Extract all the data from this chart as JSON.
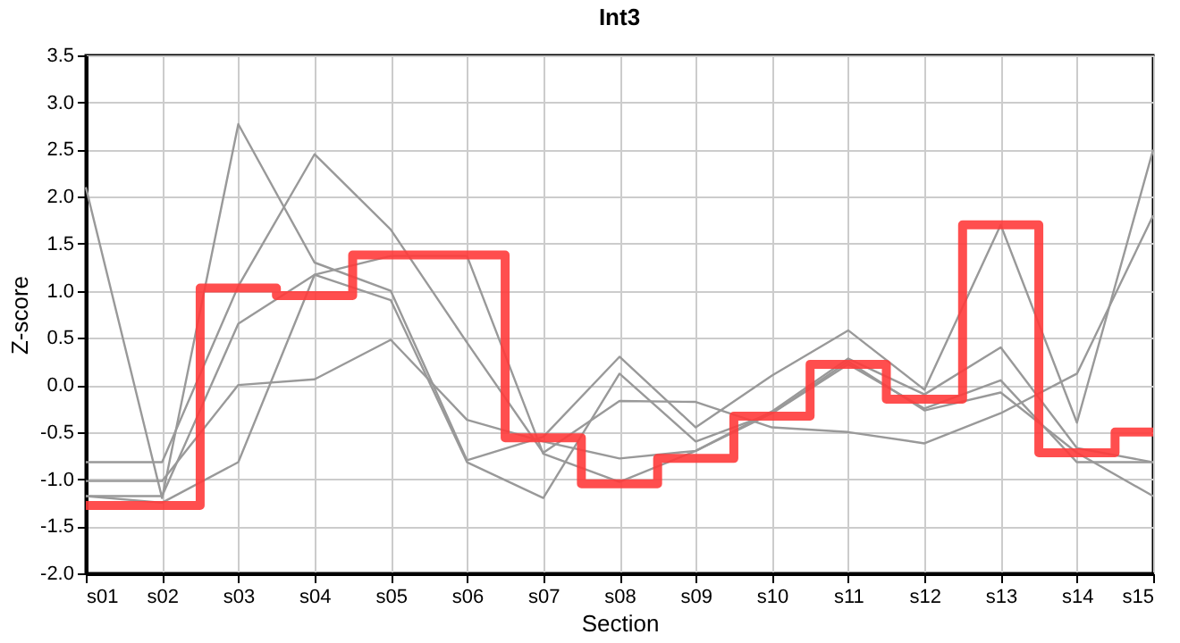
{
  "chart_data": {
    "type": "line",
    "title": "Int3",
    "xlabel": "Section",
    "ylabel": "Z-score",
    "categories": [
      "s01",
      "s02",
      "s03",
      "s04",
      "s05",
      "s06",
      "s07",
      "s08",
      "s09",
      "s10",
      "s11",
      "s12",
      "s13",
      "s14",
      "s15"
    ],
    "series": [
      {
        "color": "#999999",
        "values": [
          2.1,
          -1.2,
          2.77,
          1.3,
          1.0,
          -0.8,
          -0.55,
          0.3,
          -0.45,
          0.1,
          0.58,
          -0.05,
          1.7,
          -0.4,
          2.5
        ]
      },
      {
        "color": "#999999",
        "values": [
          -0.82,
          -0.82,
          1.05,
          2.45,
          1.65,
          0.45,
          -0.72,
          -0.17,
          -0.18,
          -0.45,
          -0.5,
          -0.62,
          -0.3,
          0.12,
          1.8
        ]
      },
      {
        "color": "#999999",
        "values": [
          -1.02,
          -1.02,
          0.0,
          0.06,
          0.48,
          -0.37,
          -0.6,
          -0.78,
          -0.7,
          -0.28,
          0.28,
          -0.1,
          0.4,
          -0.67,
          -0.82
        ]
      },
      {
        "color": "#999999",
        "values": [
          -1.18,
          -1.18,
          0.65,
          1.17,
          0.9,
          -0.82,
          -1.2,
          0.12,
          -0.6,
          -0.3,
          0.25,
          -0.27,
          -0.08,
          -0.72,
          -1.18
        ]
      },
      {
        "color": "#999999",
        "values": [
          -1.18,
          -1.25,
          -0.82,
          1.17,
          1.37,
          1.37,
          -0.73,
          -1.03,
          -0.7,
          -0.3,
          0.22,
          -0.25,
          0.05,
          -0.82,
          -0.82
        ]
      },
      {
        "type": "step",
        "color": "#ff3b3b",
        "values": [
          -1.28,
          -1.28,
          1.03,
          0.95,
          1.38,
          1.38,
          -0.56,
          -1.05,
          -0.78,
          -0.33,
          0.22,
          -0.15,
          1.7,
          -0.72,
          -0.5
        ]
      }
    ],
    "ylim": [
      -2.0,
      3.5
    ],
    "yticks": [
      {
        "value": -2,
        "label": "-2.0"
      },
      {
        "value": -1.5,
        "label": "-1.5"
      },
      {
        "value": -1,
        "label": "-1.0"
      },
      {
        "value": -0.5,
        "label": "-0.5"
      },
      {
        "value": 0,
        "label": "0.0"
      },
      {
        "value": 0.5,
        "label": "0.5"
      },
      {
        "value": 1,
        "label": "1.0"
      },
      {
        "value": 1.5,
        "label": "1.5"
      },
      {
        "value": 2,
        "label": "2.0"
      },
      {
        "value": 2.5,
        "label": "2.5"
      },
      {
        "value": 3,
        "label": "3.0"
      },
      {
        "value": 3.5,
        "label": "3.5"
      }
    ],
    "grid": true
  }
}
